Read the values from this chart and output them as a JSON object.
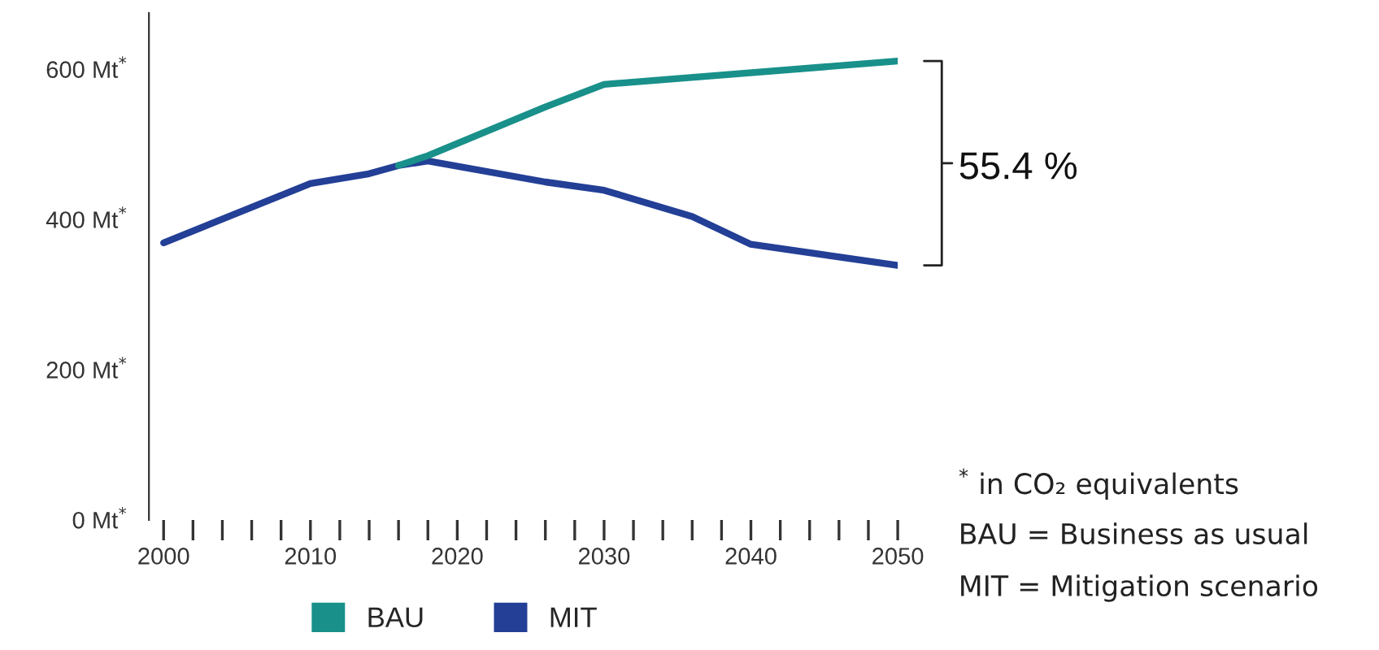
{
  "chart_data": {
    "type": "line",
    "series": [
      {
        "name": "BAU",
        "color": "#19908a",
        "x": [
          2016,
          2018,
          2026,
          2030,
          2050
        ],
        "values": [
          472,
          485,
          550,
          580,
          611
        ]
      },
      {
        "name": "MIT",
        "color": "#233f96",
        "x": [
          2000,
          2010,
          2014,
          2016,
          2018,
          2026,
          2030,
          2036,
          2040,
          2050
        ],
        "values": [
          369,
          448,
          461,
          472,
          478,
          450,
          439,
          404,
          367,
          339
        ]
      }
    ],
    "xlim": [
      1999,
      2050
    ],
    "xticks": [
      2000,
      {
        "value": 2002,
        "label": null
      },
      {
        "value": 2004,
        "label": null
      },
      {
        "value": 2006,
        "label": null
      },
      {
        "value": 2008,
        "label": null
      },
      2010,
      {
        "value": 2012,
        "label": null
      },
      {
        "value": 2014,
        "label": null
      },
      {
        "value": 2016,
        "label": null
      },
      {
        "value": 2018,
        "label": null
      },
      2020,
      {
        "value": 2022,
        "label": null
      },
      {
        "value": 2024,
        "label": null
      },
      {
        "value": 2026,
        "label": null
      },
      {
        "value": 2028,
        "label": null
      },
      2030,
      {
        "value": 2032,
        "label": null
      },
      {
        "value": 2034,
        "label": null
      },
      {
        "value": 2036,
        "label": null
      },
      {
        "value": 2038,
        "label": null
      },
      2040,
      {
        "value": 2042,
        "label": null
      },
      {
        "value": 2044,
        "label": null
      },
      {
        "value": 2046,
        "label": null
      },
      {
        "value": 2048,
        "label": null
      },
      2050
    ],
    "ylim": [
      0,
      675
    ],
    "yticks": [
      {
        "value": 0,
        "label": "0 Mt$^{*}$"
      },
      {
        "value": 200,
        "label": "200 Mt$^{*}$"
      },
      {
        "value": 400,
        "label": "400 Mt$^{*}$"
      },
      {
        "value": 600,
        "label": "600 Mt$^{*}$"
      }
    ],
    "annotations": [
      "55.4 %",
      "$^{*}$ in CO₂ equivalents",
      "BAU = Business as usual",
      "MIT = Mitigation scenario"
    ],
    "legend": "bottom",
    "grid": false,
    "marker": "none",
    "line_style": "solid"
  }
}
